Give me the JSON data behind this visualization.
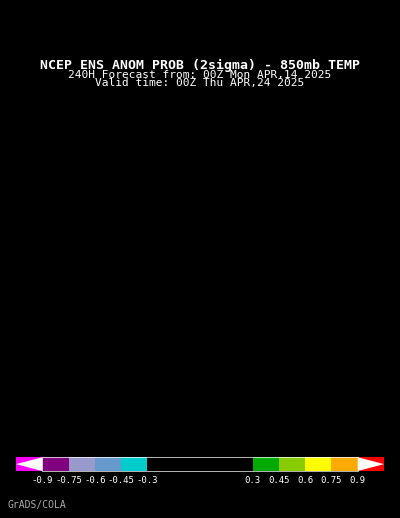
{
  "title_line1": "NCEP ENS ANOM PROB (2sigma) - 850mb TEMP",
  "title_line2": "240H Forecast from: 00Z Mon APR,14 2025",
  "title_line3": "Valid time: 00Z Thu APR,24 2025",
  "bg_color": "#000000",
  "title_color": "#ffffff",
  "colorbar_labels": [
    "-0.9",
    "-0.75",
    "-0.6",
    "-0.45",
    "-0.3",
    "0.3",
    "0.45",
    "0.6",
    "0.75",
    "0.9"
  ],
  "colorbar_colors": [
    "#ff00ff",
    "#800080",
    "#9999cc",
    "#6699cc",
    "#00cccc",
    "#000000",
    "#00aa00",
    "#88cc00",
    "#ffff00",
    "#ffaa00",
    "#ff0000"
  ],
  "colorbar_values": [
    -1.05,
    -0.9,
    -0.75,
    -0.6,
    -0.45,
    -0.3,
    0.3,
    0.45,
    0.6,
    0.75,
    0.9,
    1.05
  ],
  "credit_text": "GrADS/COLA",
  "credit_color": "#aaaaaa",
  "map_bg": "#000000",
  "land_color": "#000000",
  "border_color": "#ffffff",
  "ocean_color": "#000000"
}
